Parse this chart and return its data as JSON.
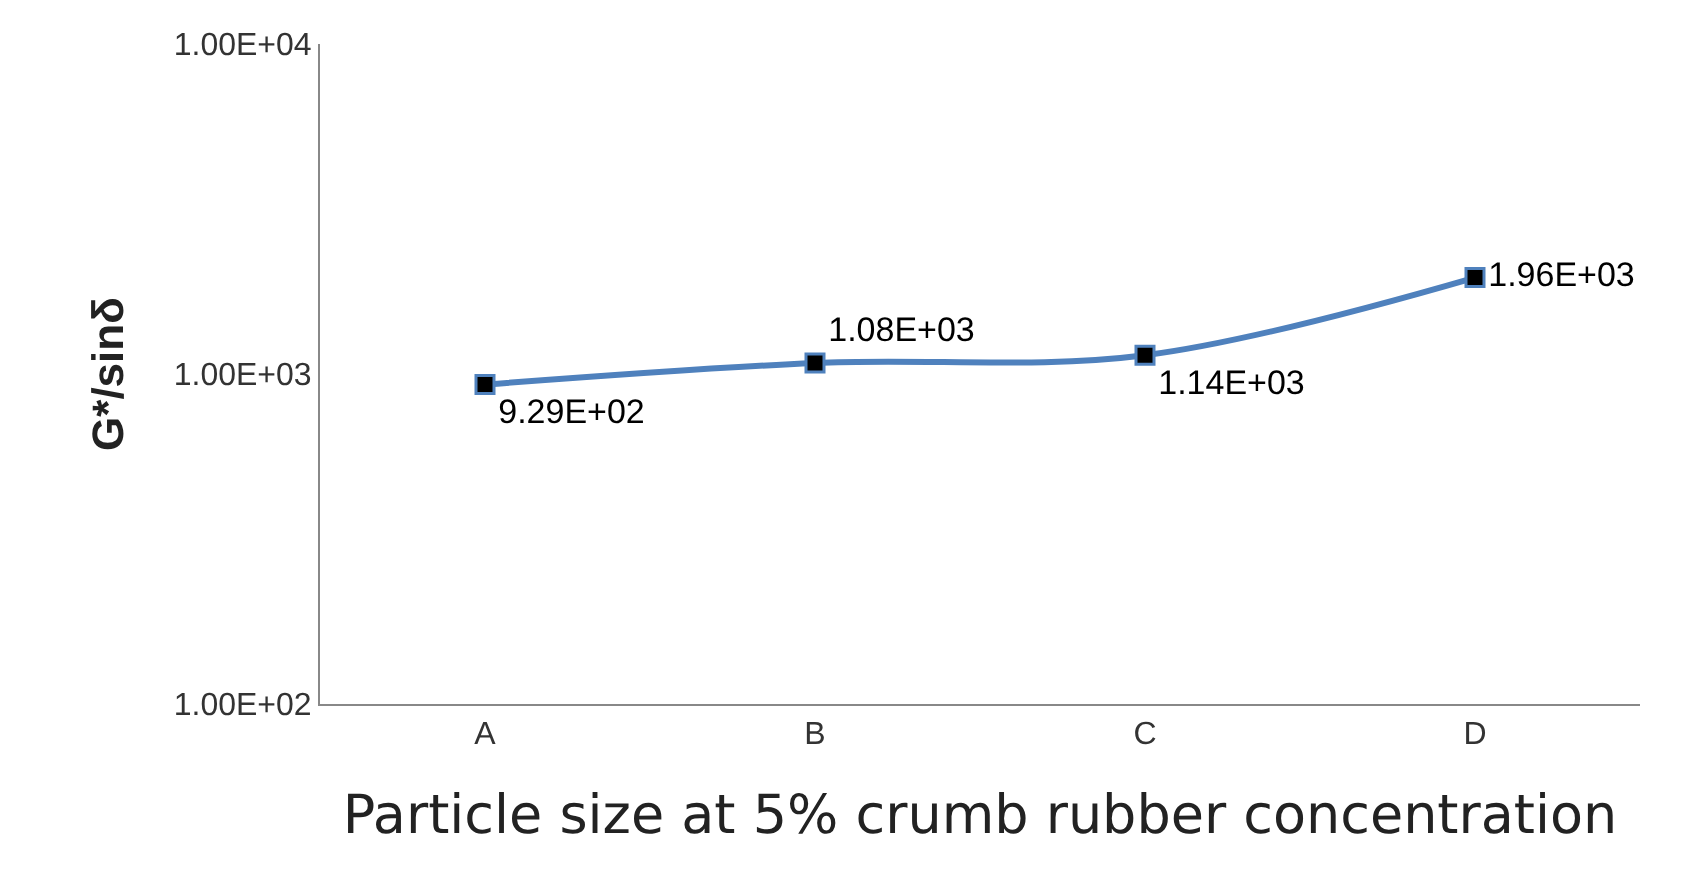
{
  "chart_data": {
    "type": "line",
    "xlabel": "Particle size at 5% crumb rubber concentration",
    "ylabel": "G*/sinδ",
    "categories": [
      "A",
      "B",
      "C",
      "D"
    ],
    "series": [
      {
        "color": "#4f81bd",
        "values": [
          929,
          1080,
          1140,
          1960
        ],
        "value_labels": [
          "9.29E+02",
          "1.08E+03",
          "1.14E+03",
          "1.96E+03"
        ]
      }
    ],
    "log": true,
    "ylim": [
      100,
      10000
    ],
    "yticks": [
      {
        "value": 100,
        "label": "1.00E+02"
      },
      {
        "value": 1000,
        "label": "1.00E+03"
      },
      {
        "value": 10000,
        "label": "1.00E+04"
      }
    ],
    "grid": false,
    "legend": false,
    "marker": "square",
    "line_style": "solid"
  }
}
